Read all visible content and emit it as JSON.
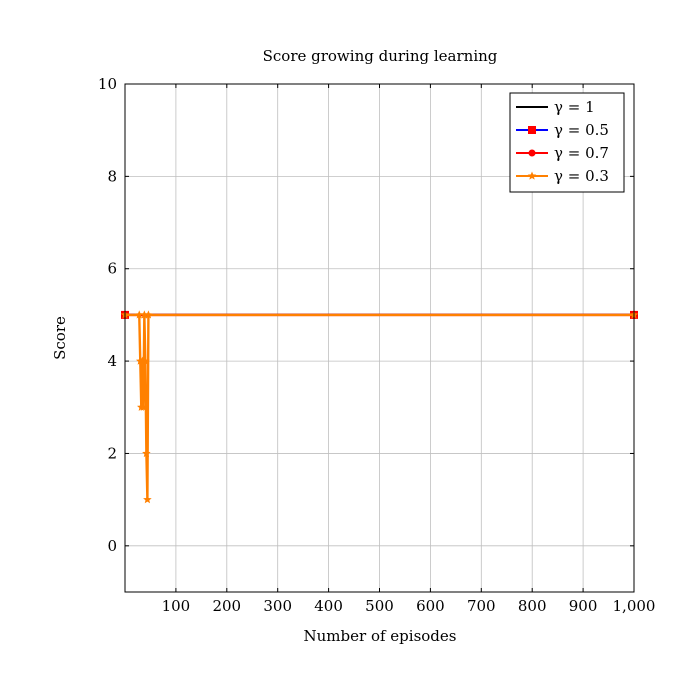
{
  "chart_data": {
    "type": "line",
    "title": "Score growing during learning",
    "xlabel": "Number of episodes",
    "ylabel": "Score",
    "xlim": [
      0,
      1000
    ],
    "ylim": [
      -1,
      10
    ],
    "xticks": [
      100,
      200,
      300,
      400,
      500,
      600,
      700,
      800,
      900,
      1000
    ],
    "xtick_labels": [
      "100",
      "200",
      "300",
      "400",
      "500",
      "600",
      "700",
      "800",
      "900",
      "1,000"
    ],
    "yticks": [
      0,
      2,
      4,
      6,
      8,
      10
    ],
    "ytick_labels": [
      "0",
      "2",
      "4",
      "6",
      "8",
      "10"
    ],
    "grid": true,
    "legend_position": "top-right",
    "series": [
      {
        "name": "γ = 1",
        "color": "#000000",
        "marker": "none",
        "x": [
          0,
          1000
        ],
        "y": [
          5,
          5
        ]
      },
      {
        "name": "γ = 0.5",
        "color": "#0000ff",
        "marker_color": "#ff0000",
        "marker": "square",
        "x": [
          0,
          1000
        ],
        "y": [
          5,
          5
        ]
      },
      {
        "name": "γ = 0.7",
        "color": "#ff0000",
        "marker": "circle",
        "x": [
          0,
          1000
        ],
        "y": [
          5,
          5
        ]
      },
      {
        "name": "γ = 0.3",
        "color": "#ff8000",
        "marker": "star",
        "x": [
          0,
          28,
          30,
          32,
          34,
          36,
          38,
          40,
          42,
          44,
          46,
          1000
        ],
        "y": [
          5,
          5,
          4,
          3,
          4,
          3,
          5,
          4,
          2,
          1,
          5,
          5
        ]
      }
    ]
  }
}
